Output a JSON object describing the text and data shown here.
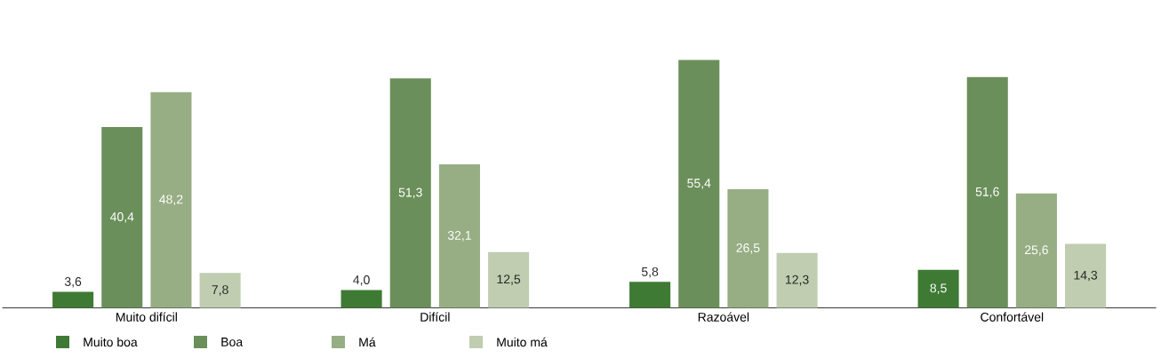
{
  "chart_data": {
    "type": "bar",
    "categories": [
      "Muito difícil",
      "Difícil",
      "Razoável",
      "Confortável"
    ],
    "series": [
      {
        "name": "Muito boa",
        "color": "#3f7a35",
        "values": [
          3.6,
          4.0,
          5.8,
          8.5
        ],
        "value_labels": [
          "3,6",
          "4,0",
          "5,8",
          "8,5"
        ]
      },
      {
        "name": "Boa",
        "color": "#6b8f5a",
        "values": [
          40.4,
          51.3,
          55.4,
          51.6
        ],
        "value_labels": [
          "40,4",
          "51,3",
          "55,4",
          "51,6"
        ]
      },
      {
        "name": "Má",
        "color": "#97ae84",
        "values": [
          48.2,
          32.1,
          26.5,
          25.6
        ],
        "value_labels": [
          "48,2",
          "32,1",
          "26,5",
          "25,6"
        ]
      },
      {
        "name": "Muito má",
        "color": "#c0cdb0",
        "values": [
          7.8,
          12.5,
          12.3,
          14.3
        ],
        "value_labels": [
          "7,8",
          "12,5",
          "12,3",
          "14,3"
        ]
      }
    ],
    "legend": "bottom left"
  }
}
